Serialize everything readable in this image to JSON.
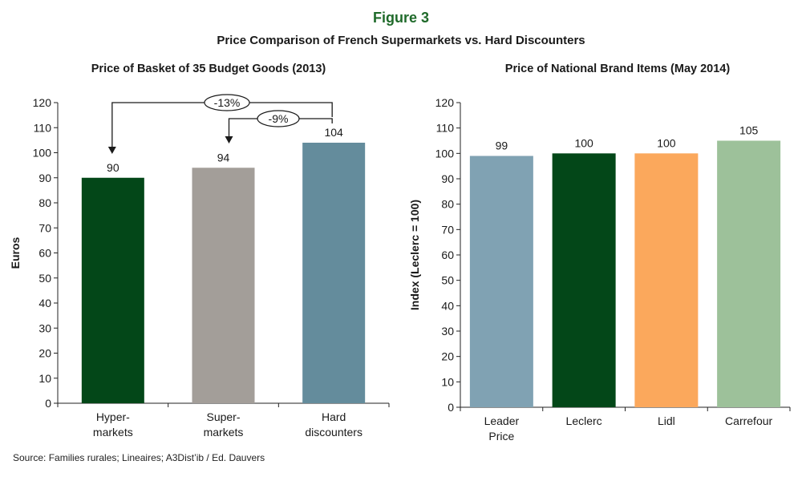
{
  "figure": {
    "label": "Figure 3",
    "title": "Price Comparison of French Supermarkets vs. Hard Discounters",
    "source": "Source: Families rurales; Lineaires; A3Dist’ib / Ed. Dauvers"
  },
  "colors": {
    "figure_label": "#1f6a2a",
    "hypermarkets": "#034718",
    "supermarkets": "#a39e99",
    "hard_discounters": "#648c9c",
    "leader_price": "#80a2b3",
    "leclerc": "#034718",
    "lidl": "#fba85c",
    "carrefour": "#9dc19a"
  },
  "chart_data": [
    {
      "type": "bar",
      "title": "Price of Basket of 35 Budget Goods (2013)",
      "xlabel": "",
      "ylabel": "Euros",
      "ylim": [
        0,
        120
      ],
      "yticks": [
        0,
        10,
        20,
        30,
        40,
        50,
        60,
        70,
        80,
        90,
        100,
        110,
        120
      ],
      "categories": [
        [
          "Hyper-",
          "markets"
        ],
        [
          "Super-",
          "markets"
        ],
        [
          "Hard",
          "discounters"
        ]
      ],
      "values": [
        90,
        94,
        104
      ],
      "value_labels": [
        "90",
        "94",
        "104"
      ],
      "bar_colors": [
        "#034718",
        "#a39e99",
        "#648c9c"
      ],
      "grid": false,
      "annotations": [
        {
          "text": "-13%",
          "from": "Hard discounters",
          "to": "Hyper-markets"
        },
        {
          "text": "-9%",
          "from": "Hard discounters",
          "to": "Super-markets"
        }
      ]
    },
    {
      "type": "bar",
      "title": "Price of National Brand Items (May 2014)",
      "xlabel": "",
      "ylabel": "Index (Leclerc = 100)",
      "ylim": [
        0,
        120
      ],
      "yticks": [
        0,
        10,
        20,
        30,
        40,
        50,
        60,
        70,
        80,
        90,
        100,
        110,
        120
      ],
      "categories": [
        [
          "Leader",
          "Price"
        ],
        [
          "Leclerc"
        ],
        [
          "Lidl"
        ],
        [
          "Carrefour"
        ]
      ],
      "values": [
        99,
        100,
        100,
        105
      ],
      "value_labels": [
        "99",
        "100",
        "100",
        "105"
      ],
      "bar_colors": [
        "#80a2b3",
        "#034718",
        "#fba85c",
        "#9dc19a"
      ],
      "grid": false
    }
  ]
}
